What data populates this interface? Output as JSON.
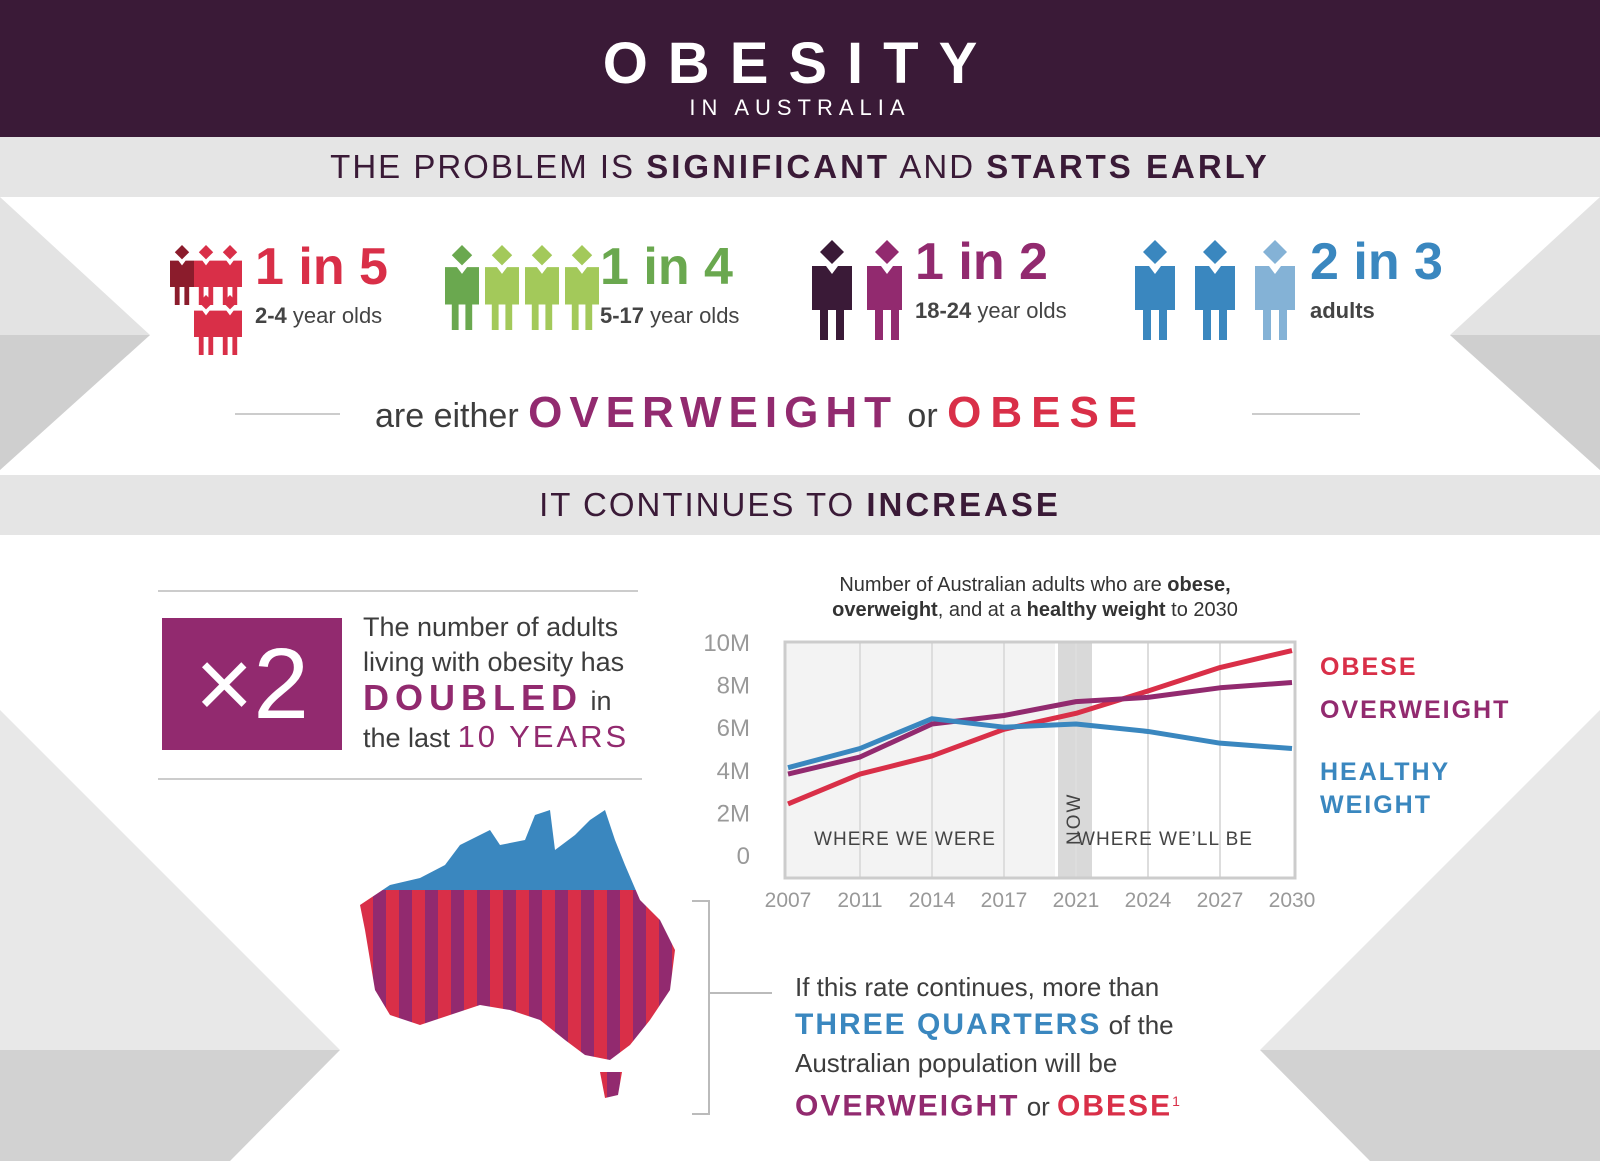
{
  "header": {
    "title": "OBESITY",
    "subtitle": "IN AUSTRALIA"
  },
  "section1": {
    "pre": "THE PROBLEM IS ",
    "b1": "SIGNIFICANT",
    "mid": " AND ",
    "b2": "STARTS EARLY"
  },
  "groups": [
    {
      "stat": "1 in 5",
      "age": "2-4",
      "suffix": " year olds",
      "color": "#d92f48",
      "highlight": "#8b1c2c",
      "count": 5
    },
    {
      "stat": "1 in 4",
      "age": "5-17",
      "suffix": " year olds",
      "color": "#6aa84f",
      "highlight": "#6aa84f",
      "base": "#a3c95a",
      "count": 4
    },
    {
      "stat": "1 in 2",
      "age": "18-24",
      "suffix": " year olds",
      "color": "#922a6f",
      "highlight": "#3a1a37",
      "count": 2
    },
    {
      "stat": "2 in 3",
      "age": "adults",
      "suffix": "",
      "color": "#3a87bf",
      "highlight": "#3a87bf",
      "base": "#84b2d6",
      "count": 3
    }
  ],
  "either": {
    "pre": "are either ",
    "overweight": "OVERWEIGHT",
    "or": " or ",
    "obese": "OBESE"
  },
  "section2": {
    "pre": "IT CONTINUES TO ",
    "b": "INCREASE"
  },
  "doubled": {
    "badge": "×2",
    "l1": "The number of adults",
    "l2": "living with obesity has",
    "big": "DOUBLED",
    "in": " in",
    "l4pre": "the last ",
    "l4b": "10 YEARS"
  },
  "projection": {
    "l1": "If this rate continues, more than",
    "b1": "THREE QUARTERS",
    "l2": " of the",
    "l3": "Australian population will be",
    "ow": "OVERWEIGHT",
    "or": " or ",
    "ob": "OBESE",
    "sup": "1"
  },
  "colors": {
    "dark": "#3a1a37",
    "obese": "#d92f48",
    "overweight": "#922a6f",
    "healthy": "#3a87bf"
  },
  "chart_data": {
    "type": "line",
    "title_parts": [
      "Number of Australian adults who are ",
      "obese,",
      "overweight",
      ", and at a ",
      "healthy weight",
      " to 2030"
    ],
    "categories": [
      "2007",
      "2011",
      "2014",
      "2017",
      "2021",
      "2024",
      "2027",
      "2030"
    ],
    "yticks": [
      "0",
      "2M",
      "4M",
      "6M",
      "8M",
      "10M"
    ],
    "ylim": [
      0,
      10
    ],
    "yunit": "millions",
    "series": [
      {
        "name": "OBESE",
        "color": "#d92f48",
        "values": [
          2.4,
          3.8,
          4.65,
          5.9,
          6.65,
          7.7,
          8.8,
          9.6
        ]
      },
      {
        "name": "OVERWEIGHT",
        "color": "#922a6f",
        "values": [
          3.8,
          4.6,
          6.15,
          6.55,
          7.2,
          7.4,
          7.85,
          8.1
        ]
      },
      {
        "name": "HEALTHY WEIGHT",
        "color": "#3a87bf",
        "values": [
          4.1,
          5.0,
          6.4,
          6.0,
          6.15,
          5.8,
          5.25,
          5.0
        ]
      }
    ],
    "annotations": {
      "past": "WHERE WE WERE",
      "now": "NOW",
      "future": "WHERE WE’LL BE"
    },
    "legend": "right",
    "grid": "vertical"
  }
}
